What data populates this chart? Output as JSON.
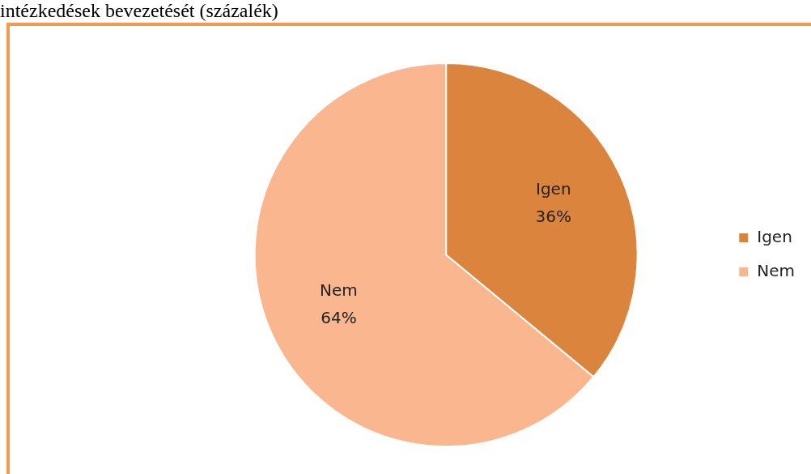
{
  "chart_data": {
    "type": "pie",
    "title": "intézkedések bevezetését (százalék)",
    "categories": [
      "Igen",
      "Nem"
    ],
    "values": [
      36,
      64
    ],
    "colors": [
      "#db843d",
      "#f9b68f"
    ],
    "value_labels": [
      "36%",
      "64%"
    ],
    "legend": "right"
  }
}
